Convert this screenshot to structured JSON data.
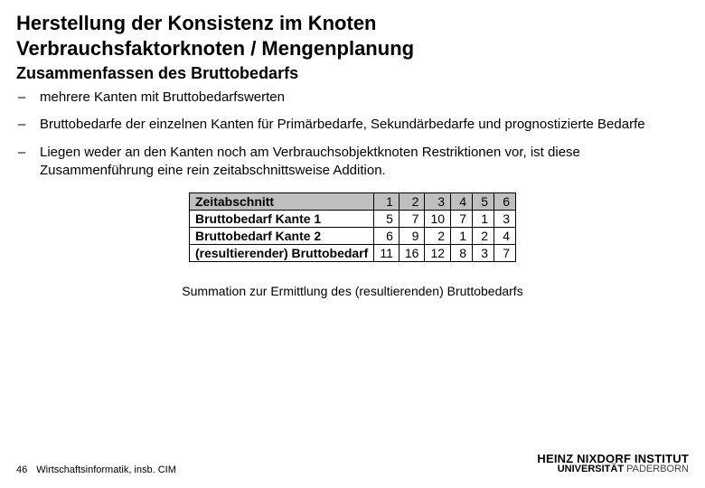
{
  "title_line1": "Herstellung der Konsistenz im Knoten",
  "title_line2": "Verbrauchsfaktorknoten / Mengenplanung",
  "subtitle": "Zusammenfassen des Bruttobedarfs",
  "bullets": [
    "mehrere Kanten mit Bruttobedarfswerten",
    "Bruttobedarfe der einzelnen Kanten für Primärbedarfe, Sekundärbedarfe und prognostizierte Bedarfe",
    "Liegen weder an den Kanten noch am Verbrauchsobjektknoten Restriktionen vor, ist diese Zusammenführung eine rein zeitabschnittsweise Addition."
  ],
  "table": {
    "header_label": "Zeitabschnitt",
    "periods": [
      "1",
      "2",
      "3",
      "4",
      "5",
      "6"
    ],
    "rows": [
      {
        "label": "Bruttobedarf Kante 1",
        "values": [
          "5",
          "7",
          "10",
          "7",
          "1",
          "3"
        ]
      },
      {
        "label": "Bruttobedarf Kante 2",
        "values": [
          "6",
          "9",
          "2",
          "1",
          "2",
          "4"
        ]
      },
      {
        "label": "(resultierender) Bruttobedarf",
        "values": [
          "11",
          "16",
          "12",
          "8",
          "3",
          "7"
        ]
      }
    ],
    "header_bg": "#bfbfbf",
    "border_color": "#000000"
  },
  "caption": "Summation zur Ermittlung des (resultierenden) Bruttobedarfs",
  "footer": {
    "page": "46",
    "dept": "Wirtschaftsinformatik, insb. CIM",
    "inst_line1": "HEINZ NIXDORF INSTITUT",
    "inst_uni": "UNIVERSITÄT",
    "inst_city": "PADERBORN",
    "rule_color": "#1f4e79"
  }
}
